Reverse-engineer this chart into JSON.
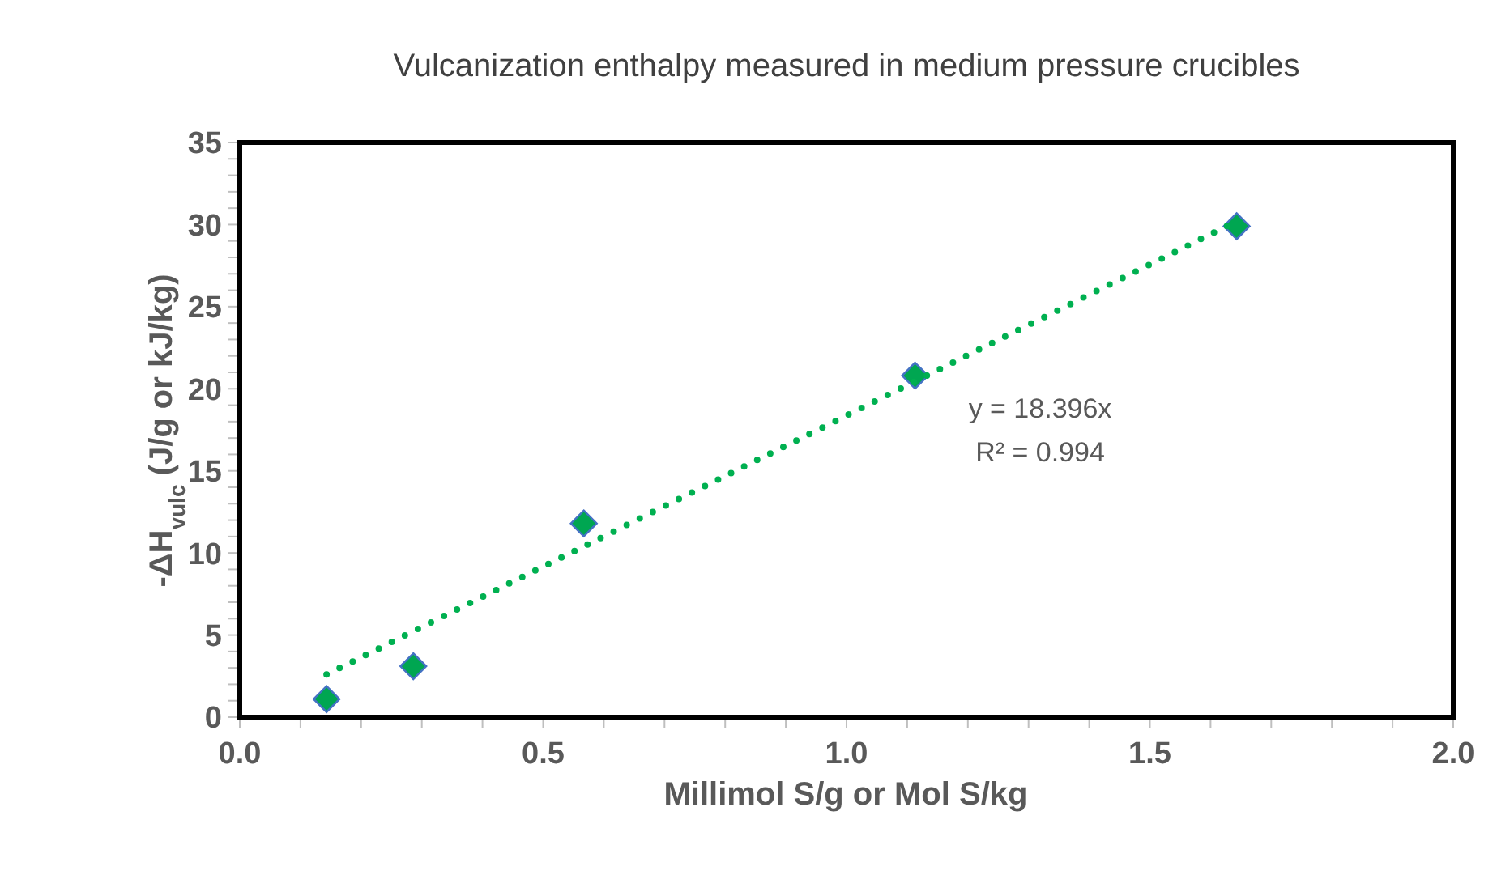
{
  "chart_data": {
    "type": "scatter",
    "title": "Vulcanization enthalpy measured in medium pressure crucibles",
    "xlabel": "Millimol S/g or Mol S/kg",
    "ylabel": "-ΔH$_{vulc}$ (J/g or kJ/kg)",
    "series": [
      {
        "color": "#00a651",
        "marker": "diamond",
        "x": [
          0.143,
          0.286,
          0.567,
          1.113,
          1.643
        ],
        "values": [
          1.1,
          3.1,
          11.8,
          20.8,
          29.9
        ]
      },
      {
        "type": "line",
        "color": "#00b050",
        "line_style": "dotted",
        "marker": "none",
        "x": [
          0.143,
          1.643
        ],
        "values": [
          2.6,
          30.2
        ]
      }
    ],
    "annotations": [
      "y = 18.396x",
      "R² = 0.994"
    ],
    "xlim": [
      0,
      2
    ],
    "ylim": [
      0,
      35
    ],
    "xticks": [
      {
        "value": 0,
        "label": "0.0"
      },
      {
        "value": 0.1,
        "label": null
      },
      {
        "value": 0.2,
        "label": null
      },
      {
        "value": 0.3,
        "label": null
      },
      {
        "value": 0.4,
        "label": null
      },
      {
        "value": 0.5,
        "label": "0.5"
      },
      {
        "value": 0.6,
        "label": null
      },
      {
        "value": 0.7,
        "label": null
      },
      {
        "value": 0.8,
        "label": null
      },
      {
        "value": 0.9,
        "label": null
      },
      {
        "value": 1,
        "label": "1.0"
      },
      {
        "value": 1.1,
        "label": null
      },
      {
        "value": 1.2,
        "label": null
      },
      {
        "value": 1.3,
        "label": null
      },
      {
        "value": 1.4,
        "label": null
      },
      {
        "value": 1.5,
        "label": "1.5"
      },
      {
        "value": 1.6,
        "label": null
      },
      {
        "value": 1.7,
        "label": null
      },
      {
        "value": 1.8,
        "label": null
      },
      {
        "value": 1.9,
        "label": null
      },
      {
        "value": 2,
        "label": "2.0"
      }
    ],
    "yticks": [
      0,
      {
        "value": 1,
        "label": null
      },
      {
        "value": 2,
        "label": null
      },
      {
        "value": 3,
        "label": null
      },
      {
        "value": 4,
        "label": null
      },
      5,
      {
        "value": 6,
        "label": null
      },
      {
        "value": 7,
        "label": null
      },
      {
        "value": 8,
        "label": null
      },
      {
        "value": 9,
        "label": null
      },
      10,
      {
        "value": 11,
        "label": null
      },
      {
        "value": 12,
        "label": null
      },
      {
        "value": 13,
        "label": null
      },
      {
        "value": 14,
        "label": null
      },
      15,
      {
        "value": 16,
        "label": null
      },
      {
        "value": 17,
        "label": null
      },
      {
        "value": 18,
        "label": null
      },
      {
        "value": 19,
        "label": null
      },
      20,
      {
        "value": 21,
        "label": null
      },
      {
        "value": 22,
        "label": null
      },
      {
        "value": 23,
        "label": null
      },
      {
        "value": 24,
        "label": null
      },
      25,
      {
        "value": 26,
        "label": null
      },
      {
        "value": 27,
        "label": null
      },
      {
        "value": 28,
        "label": null
      },
      {
        "value": 29,
        "label": null
      },
      30,
      {
        "value": 31,
        "label": null
      },
      {
        "value": 32,
        "label": null
      },
      {
        "value": 33,
        "label": null
      },
      {
        "value": 34,
        "label": null
      },
      35
    ],
    "legend": false
  }
}
